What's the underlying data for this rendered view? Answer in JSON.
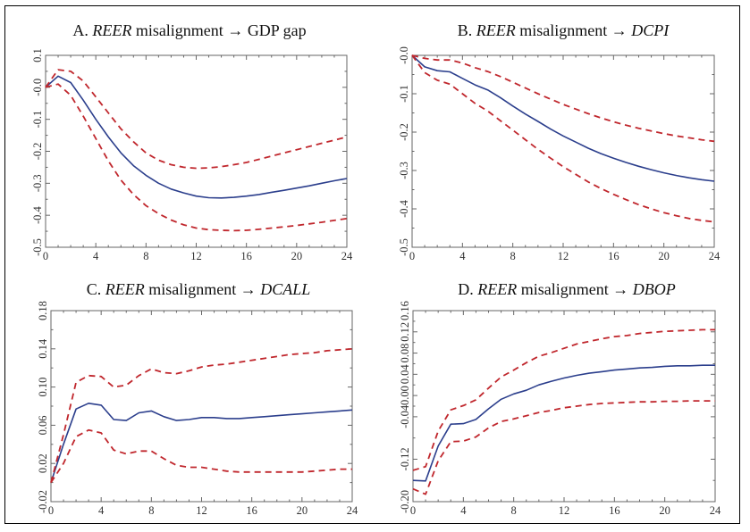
{
  "colors": {
    "median": "#2b3e8c",
    "bands": "#c0272d",
    "axis": "#666666"
  },
  "chart_data": [
    {
      "type": "line",
      "title": {
        "prefix": "A.",
        "shock": "REER",
        "text": "misalignment",
        "arrow": "→",
        "response": "GDP gap",
        "response_italic": false
      },
      "x": [
        0,
        1,
        2,
        3,
        4,
        5,
        6,
        7,
        8,
        9,
        10,
        11,
        12,
        13,
        14,
        15,
        16,
        17,
        18,
        19,
        20,
        21,
        22,
        23,
        24
      ],
      "xlim": [
        0,
        24
      ],
      "xticks": [
        "0",
        "4",
        "8",
        "12",
        "16",
        "20",
        "24"
      ],
      "ylim": [
        -0.5,
        0.1
      ],
      "yticks": [
        "-0.5",
        "-0.4",
        "-0.3",
        "-0.2",
        "-0.1",
        "-0.0",
        "0.1"
      ],
      "series": [
        {
          "role": "median",
          "style": "solid",
          "values": [
            0,
            0.035,
            0.015,
            -0.04,
            -0.1,
            -0.155,
            -0.205,
            -0.245,
            -0.275,
            -0.3,
            -0.318,
            -0.33,
            -0.34,
            -0.345,
            -0.346,
            -0.344,
            -0.34,
            -0.335,
            -0.328,
            -0.322,
            -0.315,
            -0.308,
            -0.3,
            -0.292,
            -0.285
          ]
        },
        {
          "role": "upper",
          "style": "dashed",
          "values": [
            0,
            0.055,
            0.05,
            0.02,
            -0.03,
            -0.08,
            -0.13,
            -0.17,
            -0.205,
            -0.228,
            -0.242,
            -0.25,
            -0.253,
            -0.252,
            -0.248,
            -0.242,
            -0.235,
            -0.225,
            -0.215,
            -0.205,
            -0.195,
            -0.185,
            -0.175,
            -0.165,
            -0.155
          ]
        },
        {
          "role": "lower",
          "style": "dashed",
          "values": [
            0,
            0.01,
            -0.025,
            -0.09,
            -0.16,
            -0.23,
            -0.29,
            -0.335,
            -0.37,
            -0.395,
            -0.415,
            -0.43,
            -0.44,
            -0.445,
            -0.447,
            -0.448,
            -0.447,
            -0.444,
            -0.44,
            -0.436,
            -0.432,
            -0.427,
            -0.422,
            -0.416,
            -0.41
          ]
        }
      ]
    },
    {
      "type": "line",
      "title": {
        "prefix": "B.",
        "shock": "REER",
        "text": "misalignment",
        "arrow": "→",
        "response": "DCPI",
        "response_italic": true
      },
      "x": [
        0,
        1,
        2,
        3,
        4,
        5,
        6,
        7,
        8,
        9,
        10,
        11,
        12,
        13,
        14,
        15,
        16,
        17,
        18,
        19,
        20,
        21,
        22,
        23,
        24
      ],
      "xlim": [
        0,
        24
      ],
      "xticks": [
        "0",
        "4",
        "8",
        "12",
        "16",
        "20",
        "24"
      ],
      "ylim": [
        -0.5,
        0.0
      ],
      "yticks": [
        "-0.5",
        "-0.4",
        "-0.3",
        "-0.2",
        "-0.1",
        "-0.0"
      ],
      "series": [
        {
          "role": "median",
          "style": "solid",
          "values": [
            0,
            -0.03,
            -0.04,
            -0.043,
            -0.06,
            -0.077,
            -0.09,
            -0.11,
            -0.132,
            -0.153,
            -0.172,
            -0.192,
            -0.21,
            -0.226,
            -0.242,
            -0.256,
            -0.268,
            -0.279,
            -0.289,
            -0.298,
            -0.306,
            -0.313,
            -0.319,
            -0.324,
            -0.328
          ]
        },
        {
          "role": "upper",
          "style": "dashed",
          "values": [
            0,
            -0.008,
            -0.012,
            -0.012,
            -0.02,
            -0.032,
            -0.042,
            -0.055,
            -0.07,
            -0.085,
            -0.1,
            -0.114,
            -0.128,
            -0.14,
            -0.152,
            -0.163,
            -0.173,
            -0.182,
            -0.19,
            -0.197,
            -0.204,
            -0.21,
            -0.215,
            -0.22,
            -0.224
          ]
        },
        {
          "role": "lower",
          "style": "dashed",
          "values": [
            0,
            -0.045,
            -0.065,
            -0.075,
            -0.1,
            -0.125,
            -0.145,
            -0.17,
            -0.195,
            -0.22,
            -0.245,
            -0.268,
            -0.29,
            -0.31,
            -0.33,
            -0.347,
            -0.362,
            -0.376,
            -0.389,
            -0.4,
            -0.41,
            -0.418,
            -0.425,
            -0.43,
            -0.434
          ]
        }
      ]
    },
    {
      "type": "line",
      "title": {
        "prefix": "C.",
        "shock": "REER",
        "text": "misalignment",
        "arrow": "→",
        "response": "DCALL",
        "response_italic": true
      },
      "x": [
        0,
        1,
        2,
        3,
        4,
        5,
        6,
        7,
        8,
        9,
        10,
        11,
        12,
        13,
        14,
        15,
        16,
        17,
        18,
        19,
        20,
        21,
        22,
        23,
        24
      ],
      "xlim": [
        0,
        24
      ],
      "xticks": [
        "0",
        "4",
        "8",
        "12",
        "16",
        "20",
        "24"
      ],
      "ylim": [
        -0.02,
        0.18
      ],
      "yticks": [
        "-0.02",
        "0.02",
        "0.06",
        "0.10",
        "0.14",
        "0.18"
      ],
      "series": [
        {
          "role": "median",
          "style": "solid",
          "values": [
            0,
            0.04,
            0.077,
            0.083,
            0.081,
            0.066,
            0.065,
            0.073,
            0.075,
            0.069,
            0.065,
            0.066,
            0.068,
            0.068,
            0.067,
            0.067,
            0.068,
            0.069,
            0.07,
            0.071,
            0.072,
            0.073,
            0.074,
            0.075,
            0.076
          ]
        },
        {
          "role": "upper",
          "style": "dashed",
          "values": [
            0,
            0.05,
            0.105,
            0.112,
            0.111,
            0.1,
            0.102,
            0.112,
            0.119,
            0.115,
            0.114,
            0.117,
            0.121,
            0.123,
            0.124,
            0.126,
            0.128,
            0.13,
            0.132,
            0.134,
            0.135,
            0.136,
            0.138,
            0.139,
            0.14
          ]
        },
        {
          "role": "lower",
          "style": "dashed",
          "values": [
            0,
            0.02,
            0.048,
            0.055,
            0.052,
            0.034,
            0.03,
            0.033,
            0.033,
            0.025,
            0.018,
            0.016,
            0.016,
            0.014,
            0.012,
            0.011,
            0.011,
            0.011,
            0.011,
            0.011,
            0.011,
            0.012,
            0.013,
            0.014,
            0.014
          ]
        }
      ]
    },
    {
      "type": "line",
      "title": {
        "prefix": "D.",
        "shock": "REER",
        "text": "misalignment",
        "arrow": "→",
        "response": "DBOP",
        "response_italic": true
      },
      "x": [
        0,
        1,
        2,
        3,
        4,
        5,
        6,
        7,
        8,
        9,
        10,
        11,
        12,
        13,
        14,
        15,
        16,
        17,
        18,
        19,
        20,
        21,
        22,
        23,
        24
      ],
      "xlim": [
        0,
        24
      ],
      "xticks": [
        "0",
        "4",
        "8",
        "12",
        "16",
        "20",
        "24"
      ],
      "ylim": [
        -0.2,
        0.16
      ],
      "yticks": [
        "-0.20",
        "-0.12",
        "-0.04",
        "0.00",
        "0.04",
        "0.08",
        "0.12",
        "0.16"
      ],
      "series": [
        {
          "role": "median",
          "style": "solid",
          "values": [
            -0.16,
            -0.161,
            -0.095,
            -0.054,
            -0.053,
            -0.045,
            -0.025,
            -0.007,
            0.003,
            0.01,
            0.02,
            0.027,
            0.033,
            0.038,
            0.042,
            0.045,
            0.048,
            0.05,
            0.052,
            0.053,
            0.055,
            0.056,
            0.056,
            0.057,
            0.057
          ]
        },
        {
          "role": "upper",
          "style": "dashed",
          "values": [
            -0.141,
            -0.134,
            -0.067,
            -0.027,
            -0.019,
            -0.008,
            0.014,
            0.035,
            0.048,
            0.062,
            0.074,
            0.081,
            0.089,
            0.097,
            0.102,
            0.107,
            0.111,
            0.113,
            0.117,
            0.119,
            0.121,
            0.122,
            0.123,
            0.124,
            0.124
          ]
        },
        {
          "role": "lower",
          "style": "dashed",
          "values": [
            -0.176,
            -0.186,
            -0.123,
            -0.087,
            -0.086,
            -0.078,
            -0.061,
            -0.049,
            -0.044,
            -0.038,
            -0.032,
            -0.028,
            -0.023,
            -0.02,
            -0.017,
            -0.015,
            -0.014,
            -0.013,
            -0.012,
            -0.012,
            -0.011,
            -0.011,
            -0.01,
            -0.01,
            -0.01
          ]
        }
      ]
    }
  ]
}
